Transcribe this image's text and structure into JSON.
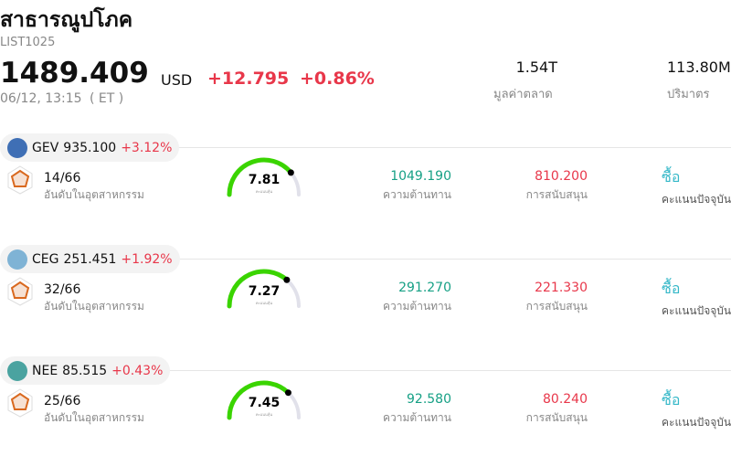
{
  "header": {
    "title": "สาธารณูปโภค",
    "code": "LIST1025",
    "price": "1489.409",
    "currency": "USD",
    "change": "+12.795",
    "change_pct": "+0.86%",
    "time": "06/12, 13:15",
    "timezone": "( ET )",
    "market_cap": "1.54T",
    "market_cap_label": "มูลค่าตลาด",
    "volume": "113.80M",
    "volume_label": "ปริมาตร"
  },
  "stocks": [
    {
      "ticker": "GEV",
      "price": "935.100",
      "change": "+3.12%",
      "rank": "14/66",
      "rank_label": "อันดับในอุตสาหกรรม",
      "score": 7.81,
      "score_label": "คะแนนหุ้น",
      "resistance": "1049.190",
      "resistance_label": "ความต้านทาน",
      "support": "810.200",
      "support_label": "การสนับสนุน",
      "signal": "ซื้อ",
      "signal_label": "คะแนนปัจจุบัน"
    },
    {
      "ticker": "CEG",
      "price": "251.451",
      "change": "+1.92%",
      "rank": "32/66",
      "rank_label": "อันดับในอุตสาหกรรม",
      "score": 7.27,
      "score_label": "คะแนนหุ้น",
      "resistance": "291.270",
      "resistance_label": "ความต้านทาน",
      "support": "221.330",
      "support_label": "การสนับสนุน",
      "signal": "ซื้อ",
      "signal_label": "คะแนนปัจจุบัน"
    },
    {
      "ticker": "NEE",
      "price": "85.515",
      "change": "+0.43%",
      "rank": "25/66",
      "rank_label": "อันดับในอุตสาหกรรม",
      "score": 7.45,
      "score_label": "คะแนนหุ้น",
      "resistance": "92.580",
      "resistance_label": "ความต้านทาน",
      "support": "80.240",
      "support_label": "การสนับสนุน",
      "signal": "ซื้อ",
      "signal_label": "คะแนนปัจจุบัน"
    }
  ]
}
